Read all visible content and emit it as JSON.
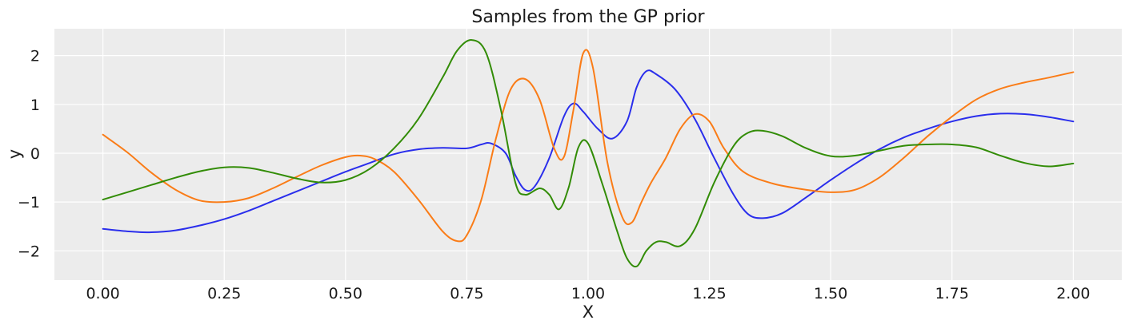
{
  "chart_data": {
    "type": "line",
    "title": "Samples from the GP prior",
    "xlabel": "X",
    "ylabel": "y",
    "xlim": [
      -0.1,
      2.1
    ],
    "ylim": [
      -2.6,
      2.55
    ],
    "xticks": [
      0.0,
      0.25,
      0.5,
      0.75,
      1.0,
      1.25,
      1.5,
      1.75,
      2.0
    ],
    "xtick_labels": [
      "0.00",
      "0.25",
      "0.50",
      "0.75",
      "1.00",
      "1.25",
      "1.50",
      "1.75",
      "2.00"
    ],
    "yticks": [
      -2,
      -1,
      0,
      1,
      2
    ],
    "ytick_labels": [
      "−2",
      "−1",
      "0",
      "1",
      "2"
    ],
    "grid": true,
    "background": "#ececec",
    "series": [
      {
        "color": "#2a2eec",
        "x": [
          0.0,
          0.05,
          0.1,
          0.15,
          0.2,
          0.25,
          0.3,
          0.35,
          0.4,
          0.45,
          0.5,
          0.55,
          0.6,
          0.65,
          0.7,
          0.75,
          0.78,
          0.8,
          0.83,
          0.85,
          0.87,
          0.89,
          0.92,
          0.95,
          0.97,
          0.99,
          1.02,
          1.05,
          1.08,
          1.1,
          1.12,
          1.14,
          1.18,
          1.22,
          1.26,
          1.3,
          1.33,
          1.36,
          1.4,
          1.45,
          1.5,
          1.55,
          1.6,
          1.65,
          1.7,
          1.75,
          1.8,
          1.85,
          1.9,
          1.95,
          2.0
        ],
        "y": [
          -1.55,
          -1.6,
          -1.62,
          -1.58,
          -1.48,
          -1.35,
          -1.18,
          -0.98,
          -0.78,
          -0.58,
          -0.38,
          -0.2,
          -0.02,
          0.08,
          0.11,
          0.1,
          0.18,
          0.2,
          0.0,
          -0.45,
          -0.75,
          -0.68,
          -0.1,
          0.75,
          1.02,
          0.85,
          0.5,
          0.3,
          0.65,
          1.35,
          1.68,
          1.62,
          1.3,
          0.7,
          -0.1,
          -0.85,
          -1.25,
          -1.33,
          -1.23,
          -0.9,
          -0.55,
          -0.22,
          0.08,
          0.32,
          0.5,
          0.65,
          0.76,
          0.81,
          0.8,
          0.74,
          0.65
        ]
      },
      {
        "color": "#fa7c17",
        "x": [
          0.0,
          0.05,
          0.1,
          0.15,
          0.2,
          0.25,
          0.3,
          0.35,
          0.4,
          0.45,
          0.5,
          0.53,
          0.56,
          0.6,
          0.65,
          0.7,
          0.73,
          0.75,
          0.78,
          0.81,
          0.84,
          0.87,
          0.9,
          0.93,
          0.95,
          0.97,
          0.99,
          1.01,
          1.04,
          1.07,
          1.09,
          1.11,
          1.13,
          1.16,
          1.19,
          1.22,
          1.25,
          1.28,
          1.32,
          1.38,
          1.45,
          1.5,
          1.55,
          1.6,
          1.65,
          1.7,
          1.75,
          1.8,
          1.85,
          1.9,
          1.95,
          2.0
        ],
        "y": [
          0.38,
          0.02,
          -0.4,
          -0.75,
          -0.97,
          -1.0,
          -0.92,
          -0.72,
          -0.48,
          -0.25,
          -0.08,
          -0.05,
          -0.12,
          -0.38,
          -0.95,
          -1.6,
          -1.8,
          -1.68,
          -0.95,
          0.3,
          1.3,
          1.52,
          1.1,
          0.1,
          -0.08,
          0.9,
          2.05,
          1.75,
          -0.2,
          -1.3,
          -1.42,
          -1.0,
          -0.6,
          -0.1,
          0.5,
          0.8,
          0.65,
          0.1,
          -0.38,
          -0.62,
          -0.75,
          -0.8,
          -0.75,
          -0.5,
          -0.1,
          0.35,
          0.75,
          1.1,
          1.32,
          1.45,
          1.55,
          1.66
        ]
      },
      {
        "color": "#328c06",
        "x": [
          0.0,
          0.05,
          0.1,
          0.15,
          0.2,
          0.25,
          0.3,
          0.35,
          0.4,
          0.45,
          0.5,
          0.55,
          0.6,
          0.65,
          0.7,
          0.73,
          0.76,
          0.79,
          0.82,
          0.85,
          0.87,
          0.9,
          0.92,
          0.94,
          0.96,
          0.98,
          1.0,
          1.03,
          1.06,
          1.08,
          1.1,
          1.12,
          1.14,
          1.16,
          1.19,
          1.22,
          1.26,
          1.3,
          1.33,
          1.36,
          1.4,
          1.45,
          1.5,
          1.55,
          1.6,
          1.65,
          1.7,
          1.75,
          1.8,
          1.85,
          1.9,
          1.95,
          2.0
        ],
        "y": [
          -0.95,
          -0.8,
          -0.65,
          -0.5,
          -0.37,
          -0.29,
          -0.3,
          -0.4,
          -0.52,
          -0.6,
          -0.55,
          -0.32,
          0.1,
          0.7,
          1.55,
          2.1,
          2.32,
          2.05,
          0.9,
          -0.6,
          -0.85,
          -0.72,
          -0.85,
          -1.15,
          -0.7,
          0.12,
          0.2,
          -0.65,
          -1.6,
          -2.15,
          -2.32,
          -2.0,
          -1.82,
          -1.82,
          -1.9,
          -1.55,
          -0.6,
          0.15,
          0.42,
          0.46,
          0.35,
          0.1,
          -0.06,
          -0.05,
          0.05,
          0.15,
          0.18,
          0.18,
          0.12,
          -0.05,
          -0.2,
          -0.27,
          -0.21
        ]
      }
    ]
  }
}
